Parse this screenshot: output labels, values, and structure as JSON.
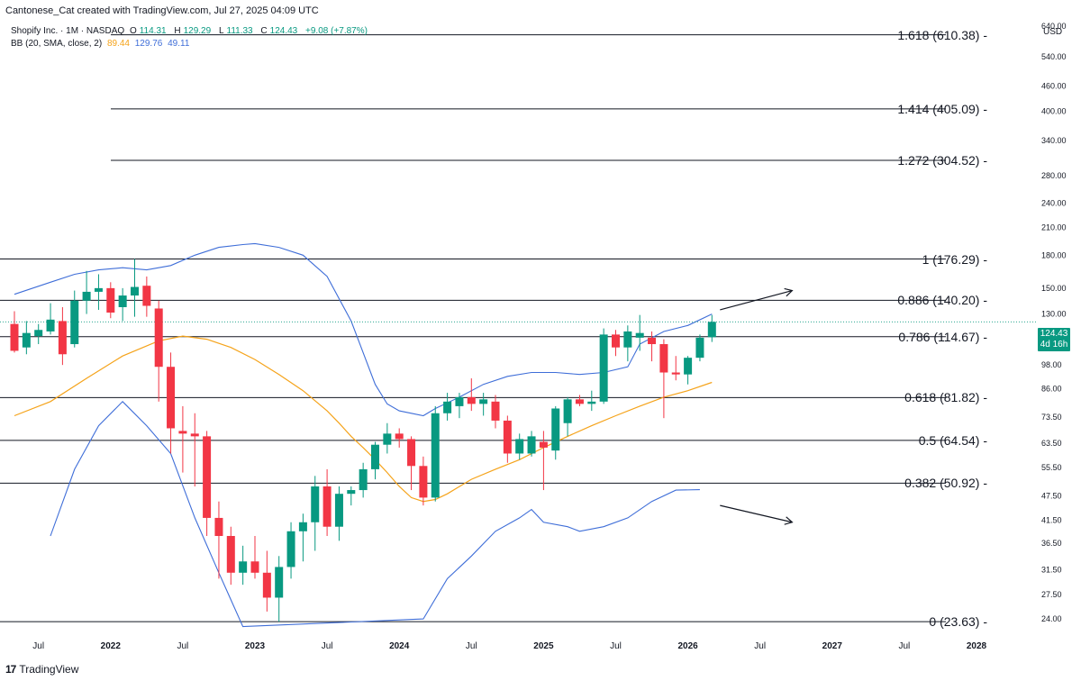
{
  "header": {
    "attribution": "Cantonese_Cat created with TradingView.com, Jul 27, 2025 04:09 UTC"
  },
  "symbol": {
    "title": "Shopify Inc. · 1M · NASDAQ",
    "open_label": "O",
    "open": "114.31",
    "high_label": "H",
    "high": "129.29",
    "low_label": "L",
    "low": "111.33",
    "close_label": "C",
    "close": "124.43",
    "change": "+9.08 (+7.87%)"
  },
  "indicator": {
    "name": "BB (20, SMA, close, 2)",
    "basis": "89.44",
    "upper": "129.76",
    "lower": "49.11"
  },
  "axis": {
    "currency": "USD"
  },
  "price_tag": {
    "price": "124.43",
    "countdown": "4d 16h"
  },
  "footer": {
    "brand": "TradingView",
    "logo_text": "17"
  },
  "colors": {
    "up": "#089981",
    "down": "#f23645",
    "bb_basis": "#f5a31a",
    "bb_band": "#3f6ed8",
    "fib_line": "#131722"
  },
  "chart_data": {
    "type": "candlestick",
    "title": "Shopify Inc. · 1M · NASDAQ",
    "scale": "log",
    "ylim": [
      22.5,
      670
    ],
    "y_ticks": [
      24.0,
      27.5,
      31.5,
      36.5,
      41.5,
      47.5,
      55.5,
      63.5,
      73.5,
      86.0,
      98.0,
      130.0,
      150.0,
      180.0,
      210.0,
      240.0,
      280.0,
      340.0,
      400.0,
      460.0,
      540.0,
      640.0
    ],
    "x_ticks": [
      {
        "label": "Jul",
        "date": "2021-07"
      },
      {
        "label": "2022",
        "date": "2022-01"
      },
      {
        "label": "Jul",
        "date": "2022-07"
      },
      {
        "label": "2023",
        "date": "2023-01"
      },
      {
        "label": "Jul",
        "date": "2023-07"
      },
      {
        "label": "2024",
        "date": "2024-01"
      },
      {
        "label": "Jul",
        "date": "2024-07"
      },
      {
        "label": "2025",
        "date": "2025-01"
      },
      {
        "label": "Jul",
        "date": "2025-07"
      },
      {
        "label": "2026",
        "date": "2026-01"
      },
      {
        "label": "Jul",
        "date": "2026-07"
      },
      {
        "label": "2027",
        "date": "2027-01"
      },
      {
        "label": "Jul",
        "date": "2027-07"
      },
      {
        "label": "2028",
        "date": "2028-01"
      }
    ],
    "candles": [
      {
        "date": "2021-05",
        "o": 123,
        "h": 132,
        "l": 105,
        "c": 106
      },
      {
        "date": "2021-06",
        "o": 108,
        "h": 125,
        "l": 104,
        "c": 117
      },
      {
        "date": "2021-07",
        "o": 115,
        "h": 123,
        "l": 110,
        "c": 119
      },
      {
        "date": "2021-08",
        "o": 118,
        "h": 138,
        "l": 116,
        "c": 126
      },
      {
        "date": "2021-09",
        "o": 125,
        "h": 135,
        "l": 98,
        "c": 104
      },
      {
        "date": "2021-10",
        "o": 110,
        "h": 148,
        "l": 108,
        "c": 140
      },
      {
        "date": "2021-11",
        "o": 140,
        "h": 165,
        "l": 130,
        "c": 147
      },
      {
        "date": "2021-12",
        "o": 147,
        "h": 162,
        "l": 133,
        "c": 150
      },
      {
        "date": "2022-01",
        "o": 150,
        "h": 155,
        "l": 127,
        "c": 131
      },
      {
        "date": "2022-02",
        "o": 135,
        "h": 150,
        "l": 125,
        "c": 144
      },
      {
        "date": "2022-03",
        "o": 144,
        "h": 176.29,
        "l": 128,
        "c": 151
      },
      {
        "date": "2022-04",
        "o": 152,
        "h": 160,
        "l": 128,
        "c": 136
      },
      {
        "date": "2022-05",
        "o": 134,
        "h": 140,
        "l": 80,
        "c": 97
      },
      {
        "date": "2022-06",
        "o": 97,
        "h": 105,
        "l": 60,
        "c": 69
      },
      {
        "date": "2022-07",
        "o": 68,
        "h": 78,
        "l": 54,
        "c": 67
      },
      {
        "date": "2022-08",
        "o": 67,
        "h": 75,
        "l": 50,
        "c": 66
      },
      {
        "date": "2022-09",
        "o": 66,
        "h": 68,
        "l": 38,
        "c": 42
      },
      {
        "date": "2022-10",
        "o": 42,
        "h": 46,
        "l": 30,
        "c": 38
      },
      {
        "date": "2022-11",
        "o": 38,
        "h": 40,
        "l": 29,
        "c": 31
      },
      {
        "date": "2022-12",
        "o": 31,
        "h": 36,
        "l": 29,
        "c": 33
      },
      {
        "date": "2023-01",
        "o": 33,
        "h": 38,
        "l": 30,
        "c": 31
      },
      {
        "date": "2023-02",
        "o": 31,
        "h": 35,
        "l": 25,
        "c": 27
      },
      {
        "date": "2023-03",
        "o": 27,
        "h": 34,
        "l": 23.63,
        "c": 32
      },
      {
        "date": "2023-04",
        "o": 32,
        "h": 41,
        "l": 30,
        "c": 39
      },
      {
        "date": "2023-05",
        "o": 39,
        "h": 43,
        "l": 33,
        "c": 41
      },
      {
        "date": "2023-06",
        "o": 41,
        "h": 53,
        "l": 35,
        "c": 50
      },
      {
        "date": "2023-07",
        "o": 50,
        "h": 55,
        "l": 38,
        "c": 40
      },
      {
        "date": "2023-08",
        "o": 40,
        "h": 50,
        "l": 37,
        "c": 48
      },
      {
        "date": "2023-09",
        "o": 48,
        "h": 50,
        "l": 45,
        "c": 49
      },
      {
        "date": "2023-10",
        "o": 49,
        "h": 57,
        "l": 47,
        "c": 55
      },
      {
        "date": "2023-11",
        "o": 55,
        "h": 64,
        "l": 52,
        "c": 63
      },
      {
        "date": "2023-12",
        "o": 63,
        "h": 71,
        "l": 60,
        "c": 67
      },
      {
        "date": "2024-01",
        "o": 67,
        "h": 69,
        "l": 62,
        "c": 65
      },
      {
        "date": "2024-02",
        "o": 65,
        "h": 66,
        "l": 49,
        "c": 56
      },
      {
        "date": "2024-03",
        "o": 56,
        "h": 59,
        "l": 45,
        "c": 47
      },
      {
        "date": "2024-04",
        "o": 47,
        "h": 78,
        "l": 46,
        "c": 75
      },
      {
        "date": "2024-05",
        "o": 75,
        "h": 84,
        "l": 72,
        "c": 80
      },
      {
        "date": "2024-06",
        "o": 78,
        "h": 84,
        "l": 73,
        "c": 82
      },
      {
        "date": "2024-07",
        "o": 82,
        "h": 91,
        "l": 76,
        "c": 79
      },
      {
        "date": "2024-08",
        "o": 79,
        "h": 84,
        "l": 74,
        "c": 81
      },
      {
        "date": "2024-09",
        "o": 80,
        "h": 83,
        "l": 69,
        "c": 72
      },
      {
        "date": "2024-10",
        "o": 72,
        "h": 74,
        "l": 57,
        "c": 60
      },
      {
        "date": "2024-11",
        "o": 60,
        "h": 67,
        "l": 58,
        "c": 65
      },
      {
        "date": "2024-12",
        "o": 60,
        "h": 68,
        "l": 59,
        "c": 66
      },
      {
        "date": "2025-01",
        "o": 64,
        "h": 68,
        "l": 49,
        "c": 62
      },
      {
        "date": "2025-02",
        "o": 61,
        "h": 78,
        "l": 58,
        "c": 77
      },
      {
        "date": "2025-03",
        "o": 71,
        "h": 82,
        "l": 66,
        "c": 81
      },
      {
        "date": "2025-04",
        "o": 81,
        "h": 83,
        "l": 78,
        "c": 79
      },
      {
        "date": "2025-05",
        "o": 79,
        "h": 85,
        "l": 76,
        "c": 80
      },
      {
        "date": "2025-06",
        "o": 80,
        "h": 120,
        "l": 79,
        "c": 116
      },
      {
        "date": "2025-07",
        "o": 116,
        "h": 119,
        "l": 103,
        "c": 108
      },
      {
        "date": "2025-08",
        "o": 108,
        "h": 122,
        "l": 100,
        "c": 118
      },
      {
        "date": "2025-09",
        "o": 114,
        "h": 129.29,
        "l": 106,
        "c": 117
      },
      {
        "date": "2025-10",
        "o": 114,
        "h": 118,
        "l": 100,
        "c": 110
      },
      {
        "date": "2025-11",
        "o": 110,
        "h": 113,
        "l": 73,
        "c": 94
      },
      {
        "date": "2025-12",
        "o": 94,
        "h": 103,
        "l": 90,
        "c": 93
      },
      {
        "date": "2026-01",
        "o": 93,
        "h": 103,
        "l": 88,
        "c": 102
      },
      {
        "date": "2026-02",
        "o": 102,
        "h": 116,
        "l": 100,
        "c": 114
      },
      {
        "date": "2026-03",
        "o": 114.31,
        "h": 129.29,
        "l": 111.33,
        "c": 124.43
      }
    ],
    "bb_basis": [
      [
        0,
        74
      ],
      [
        3,
        80
      ],
      [
        6,
        91
      ],
      [
        9,
        103
      ],
      [
        12,
        112
      ],
      [
        14,
        115
      ],
      [
        16,
        113
      ],
      [
        18,
        108
      ],
      [
        20,
        101
      ],
      [
        22,
        93
      ],
      [
        24,
        85
      ],
      [
        26,
        76
      ],
      [
        27,
        71
      ],
      [
        28,
        66
      ],
      [
        29,
        62
      ],
      [
        30,
        58
      ],
      [
        31,
        54
      ],
      [
        32,
        50
      ],
      [
        33,
        47
      ],
      [
        34,
        46
      ],
      [
        35,
        46.5
      ],
      [
        36,
        48
      ],
      [
        38,
        52
      ],
      [
        40,
        55
      ],
      [
        42,
        58
      ],
      [
        44,
        62
      ],
      [
        46,
        66
      ],
      [
        48,
        70
      ],
      [
        50,
        74
      ],
      [
        52,
        78
      ],
      [
        54,
        82
      ],
      [
        56,
        85
      ],
      [
        58,
        89
      ]
    ],
    "bb_upper": [
      [
        0,
        145
      ],
      [
        3,
        155
      ],
      [
        5,
        162
      ],
      [
        7,
        166
      ],
      [
        9,
        168
      ],
      [
        11,
        166
      ],
      [
        13,
        170
      ],
      [
        15,
        180
      ],
      [
        17,
        188
      ],
      [
        19,
        191
      ],
      [
        20,
        192
      ],
      [
        22,
        188
      ],
      [
        24,
        180
      ],
      [
        26,
        160
      ],
      [
        28,
        125
      ],
      [
        30,
        88
      ],
      [
        31,
        79
      ],
      [
        32,
        76
      ],
      [
        33,
        75
      ],
      [
        34,
        74
      ],
      [
        35,
        77
      ],
      [
        37,
        82
      ],
      [
        39,
        88
      ],
      [
        41,
        92
      ],
      [
        43,
        94
      ],
      [
        45,
        94
      ],
      [
        47,
        93
      ],
      [
        49,
        94
      ],
      [
        51,
        97
      ],
      [
        52,
        110
      ],
      [
        54,
        118
      ],
      [
        56,
        122
      ],
      [
        58,
        130
      ]
    ],
    "bb_lower": [
      [
        3,
        38
      ],
      [
        5,
        55
      ],
      [
        7,
        70
      ],
      [
        9,
        80
      ],
      [
        11,
        70
      ],
      [
        13,
        60
      ],
      [
        15,
        42
      ],
      [
        17,
        31
      ],
      [
        19,
        23
      ],
      [
        34,
        24
      ],
      [
        36,
        30
      ],
      [
        38,
        34
      ],
      [
        40,
        39
      ],
      [
        42,
        42
      ],
      [
        43,
        44
      ],
      [
        44,
        41
      ],
      [
        46,
        40
      ],
      [
        47,
        39
      ],
      [
        49,
        40
      ],
      [
        51,
        42
      ],
      [
        53,
        46
      ],
      [
        55,
        49
      ],
      [
        57,
        49.11
      ]
    ],
    "fib_levels": [
      {
        "ratio": 1.618,
        "price": 610.38,
        "label": "1.618 (610.38)"
      },
      {
        "ratio": 1.414,
        "price": 405.09,
        "label": "1.414 (405.09)"
      },
      {
        "ratio": 1.272,
        "price": 304.52,
        "label": "1.272 (304.52)"
      },
      {
        "ratio": 1,
        "price": 176.29,
        "label": "1 (176.29)"
      },
      {
        "ratio": 0.886,
        "price": 140.2,
        "label": "0.886 (140.20)"
      },
      {
        "ratio": 0.786,
        "price": 114.67,
        "label": "0.786 (114.67)"
      },
      {
        "ratio": 0.618,
        "price": 81.82,
        "label": "0.618 (81.82)"
      },
      {
        "ratio": 0.5,
        "price": 64.54,
        "label": "0.5 (64.54)"
      },
      {
        "ratio": 0.382,
        "price": 50.92,
        "label": "0.382 (50.92)"
      },
      {
        "ratio": 0,
        "price": 23.63,
        "label": "0 (23.63)"
      }
    ],
    "last_price": 124.43,
    "arrows": [
      {
        "from": [
          58,
          133
        ],
        "to": [
          64,
          148
        ]
      },
      {
        "from": [
          58,
          45
        ],
        "to": [
          64,
          41
        ]
      }
    ]
  }
}
